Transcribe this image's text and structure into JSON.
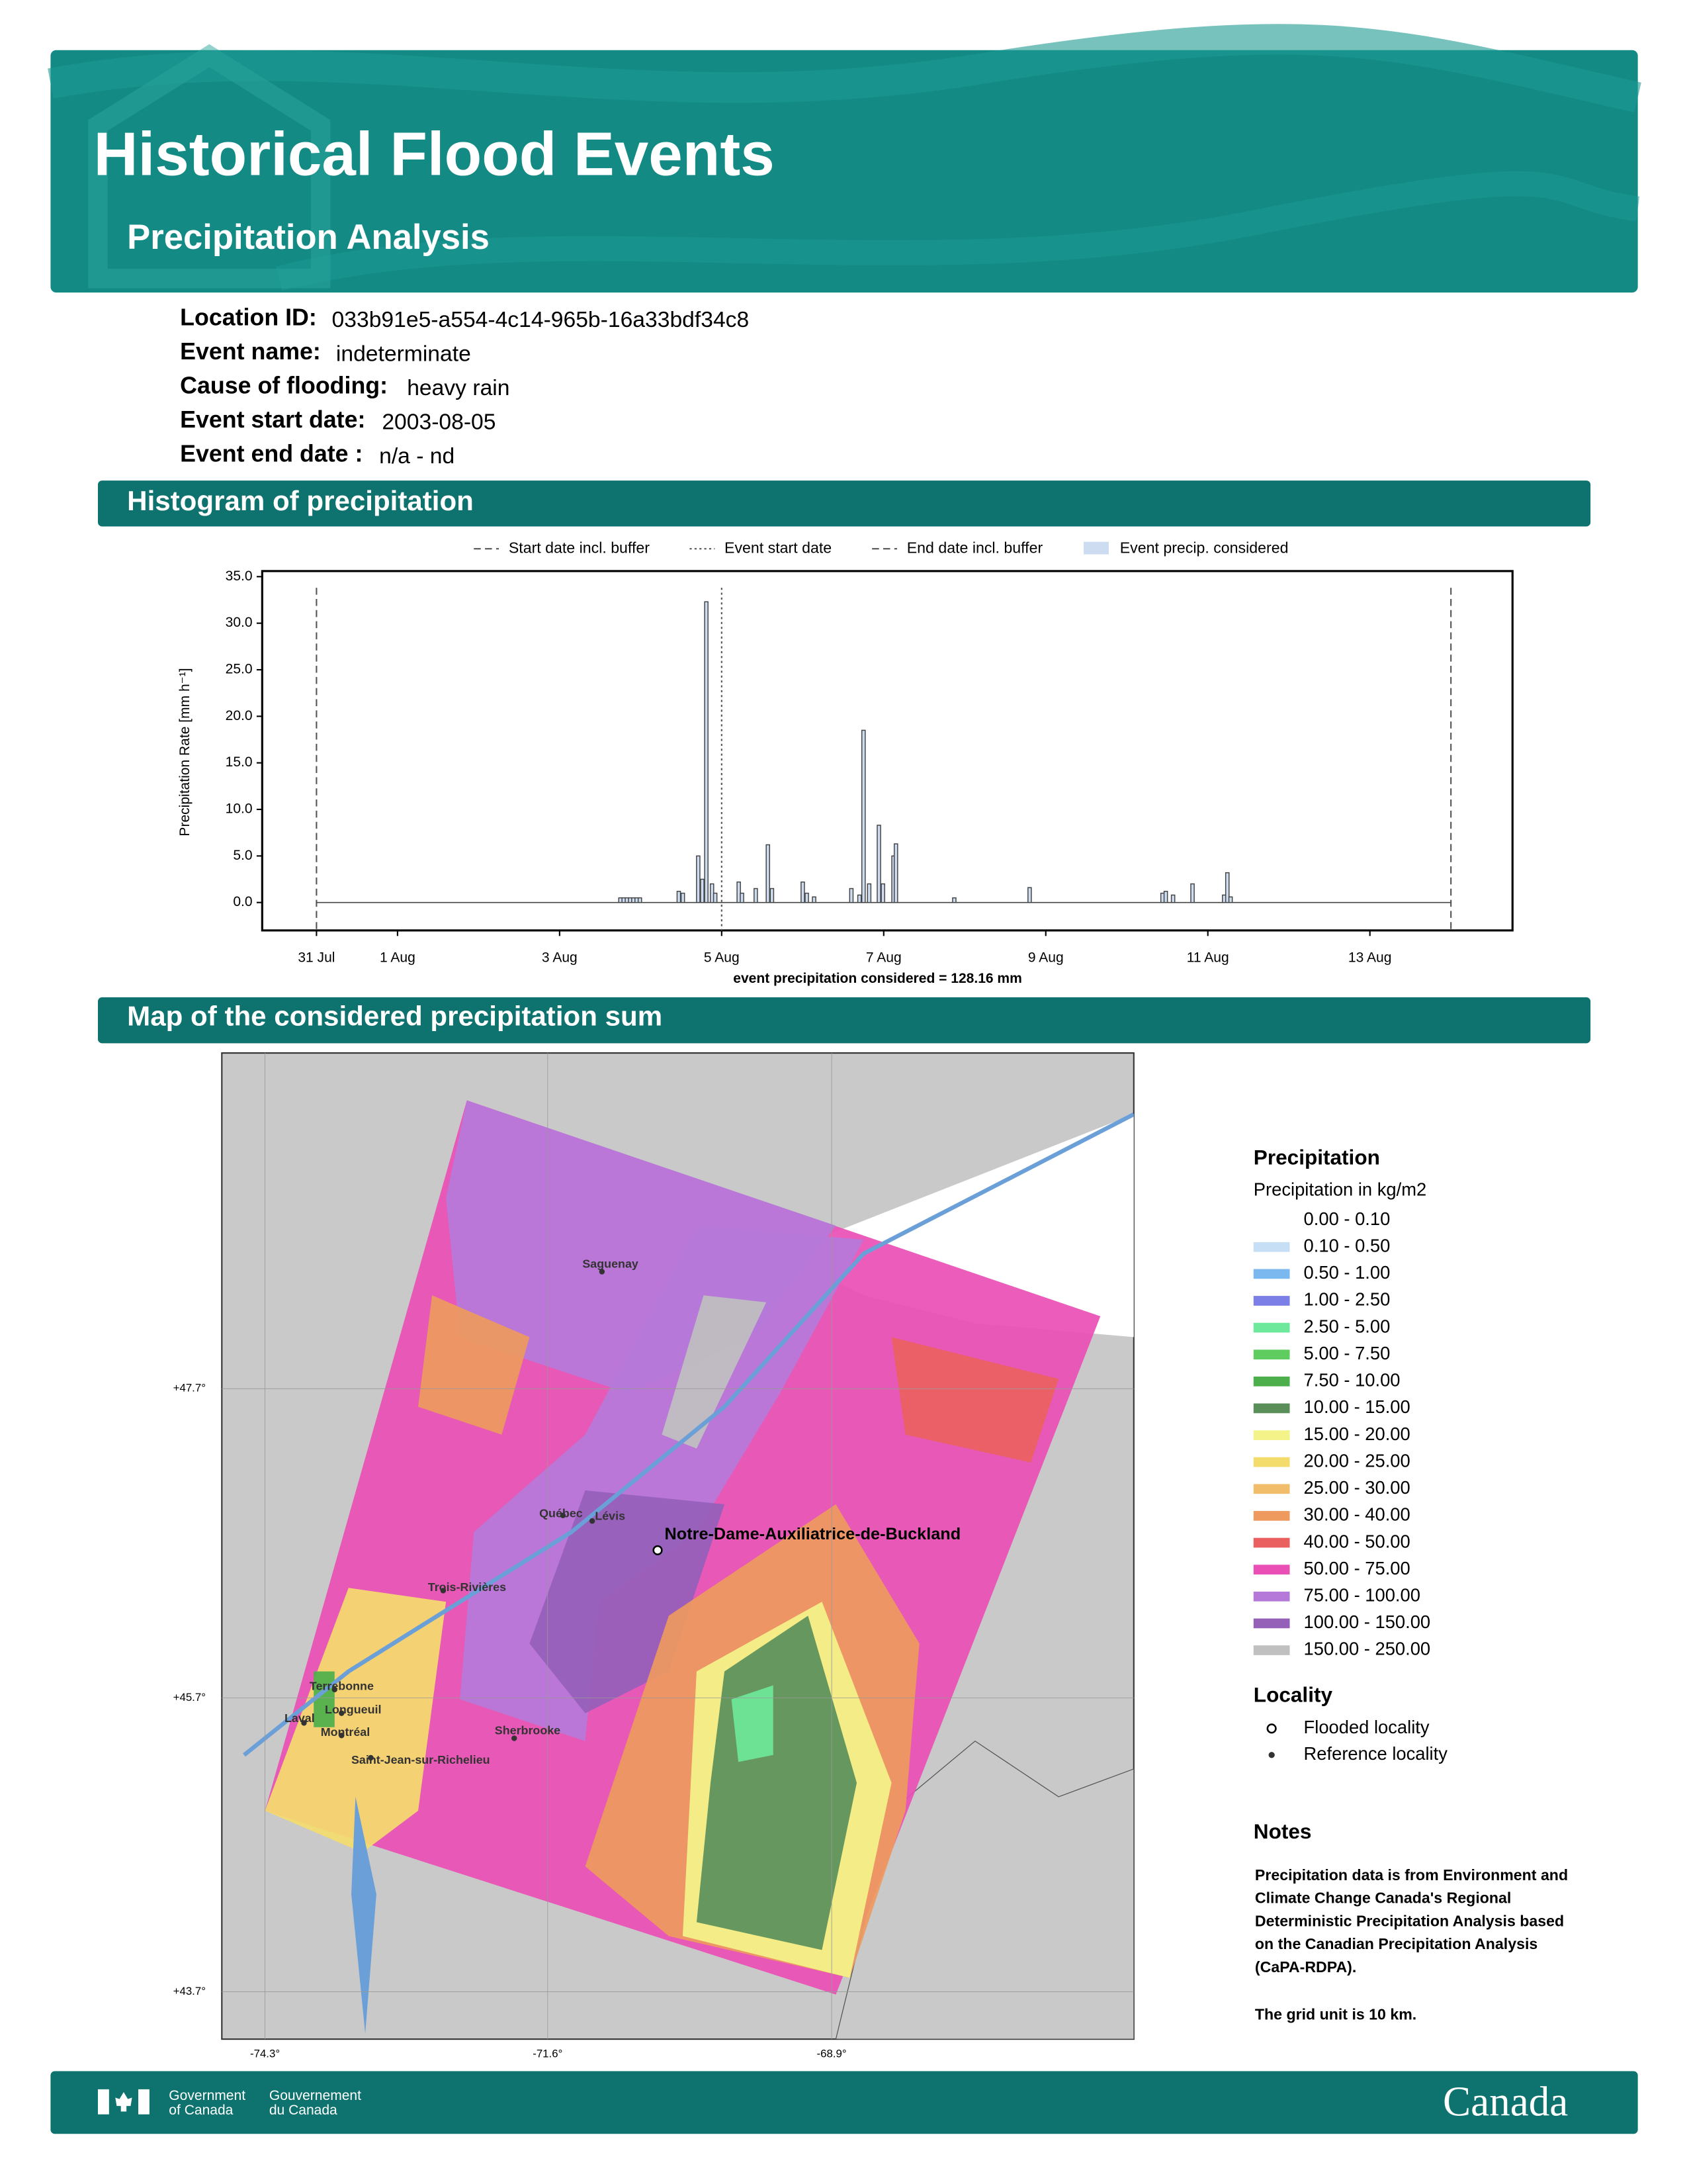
{
  "header": {
    "title": "Historical Flood Events",
    "subtitle": "Precipitation Analysis"
  },
  "info": [
    {
      "label": "Location ID:",
      "value": "033b91e5-a554-4c14-965b-16a33bdf34c8"
    },
    {
      "label": "Event name:",
      "value": "indeterminate"
    },
    {
      "label": "Cause of flooding:",
      "value": "heavy rain"
    },
    {
      "label": "Event start date:",
      "value": "2003-08-05"
    },
    {
      "label": "Event end date :",
      "value": "n/a - nd"
    }
  ],
  "sections": {
    "histogram": "Histogram of precipitation",
    "map": "Map of the considered precipitation sum"
  },
  "chart_data": {
    "type": "bar",
    "y_label": "Precipitation Rate [mm h⁻¹]",
    "annotation": "event precipitation considered = 128.16 mm",
    "series_name": "Event precip. considered",
    "color": "#cddcf0",
    "edge_color": "#444444",
    "x": [
      3.73,
      3.77,
      3.81,
      3.85,
      3.89,
      3.93,
      3.97,
      4.45,
      4.5,
      4.69,
      4.74,
      4.79,
      4.86,
      4.9,
      5.19,
      5.23,
      5.4,
      5.55,
      5.6,
      5.98,
      6.03,
      6.12,
      6.58,
      6.68,
      6.73,
      6.8,
      6.92,
      6.97,
      7.1,
      7.13,
      7.85,
      8.78,
      10.42,
      10.46,
      10.55,
      10.79,
      11.18,
      11.22,
      11.26
    ],
    "values": [
      0.5,
      0.5,
      0.5,
      0.5,
      0.5,
      0.5,
      0.5,
      1.2,
      1.0,
      5.0,
      2.5,
      32.3,
      2.0,
      1.0,
      2.2,
      1.0,
      1.5,
      6.2,
      1.5,
      2.2,
      1.0,
      0.6,
      1.5,
      0.8,
      18.5,
      2.0,
      8.3,
      2.0,
      5.0,
      6.3,
      0.5,
      1.6,
      1.0,
      1.2,
      0.8,
      2.0,
      0.8,
      3.2,
      0.6
    ],
    "lines": [
      {
        "name": "Start date incl. buffer",
        "x": 0,
        "style": "dashed"
      },
      {
        "name": "Event start date",
        "x": 5,
        "style": "dotted"
      },
      {
        "name": "End date incl. buffer",
        "x": 14,
        "style": "dashed"
      }
    ],
    "xlim": [
      -0.67,
      14.76
    ],
    "ylim": [
      -3,
      35.6
    ],
    "xticks": [
      {
        "value": 0,
        "label": "31 Jul"
      },
      {
        "value": 1,
        "label": "1 Aug"
      },
      {
        "value": 3,
        "label": "3 Aug"
      },
      {
        "value": 5,
        "label": "5 Aug"
      },
      {
        "value": 7,
        "label": "7 Aug"
      },
      {
        "value": 9,
        "label": "9 Aug"
      },
      {
        "value": 11,
        "label": "11 Aug"
      },
      {
        "value": 13,
        "label": "13 Aug"
      }
    ],
    "yticks": [
      {
        "value": 0,
        "label": "0.0"
      },
      {
        "value": 5,
        "label": "5.0"
      },
      {
        "value": 10,
        "label": "10.0"
      },
      {
        "value": 15,
        "label": "15.0"
      },
      {
        "value": 20,
        "label": "20.0"
      },
      {
        "value": 25,
        "label": "25.0"
      },
      {
        "value": 30,
        "label": "30.0"
      },
      {
        "value": 35,
        "label": "35.0"
      }
    ]
  },
  "map": {
    "lat_labels": [
      "+47.7°",
      "+45.7°",
      "+43.7°"
    ],
    "lon_labels": [
      "-74.3°",
      "-71.6°",
      "-68.9°"
    ],
    "cities": [
      "Saguenay",
      "Québec",
      "Lévis",
      "Trois-Rivières",
      "Terrebonne",
      "Longueuil",
      "Laval",
      "Montréal",
      "Saint-Jean-sur-Richelieu",
      "Sherbrooke"
    ],
    "flooded": "Notre-Dame-Auxiliatrice-de-Buckland",
    "legend": {
      "title": "Precipitation",
      "subtitle": "Precipitation in kg/m2",
      "classes": [
        {
          "label": "0.00 - 0.10",
          "color": "#ffffff"
        },
        {
          "label": "0.10 - 0.50",
          "color": "#c6dff5"
        },
        {
          "label": "0.50 - 1.00",
          "color": "#7ab8ef"
        },
        {
          "label": "1.00 - 2.50",
          "color": "#7b7fe6"
        },
        {
          "label": "2.50 - 5.00",
          "color": "#6ee89a"
        },
        {
          "label": "5.00 - 7.50",
          "color": "#5fcc5f"
        },
        {
          "label": "7.50 - 10.00",
          "color": "#4caf4c"
        },
        {
          "label": "10.00 - 15.00",
          "color": "#5a8f5a"
        },
        {
          "label": "15.00 - 20.00",
          "color": "#f3f38a"
        },
        {
          "label": "20.00 - 25.00",
          "color": "#f4dc6c"
        },
        {
          "label": "25.00 - 30.00",
          "color": "#f1bd6a"
        },
        {
          "label": "30.00 - 40.00",
          "color": "#ee9a5e"
        },
        {
          "label": "40.00 - 50.00",
          "color": "#ea5f5f"
        },
        {
          "label": "50.00 - 75.00",
          "color": "#ea4fb5"
        },
        {
          "label": "75.00 - 100.00",
          "color": "#b57ad9"
        },
        {
          "label": "100.00 - 150.00",
          "color": "#9560b8"
        },
        {
          "label": "150.00 - 250.00",
          "color": "#c0c0c0"
        }
      ],
      "locality_title": "Locality",
      "locality": [
        "Flooded locality",
        "Reference locality"
      ]
    },
    "notes": {
      "title": "Notes",
      "lines": [
        "Precipitation data is from Environment and",
        "Climate Change Canada's Regional",
        "Deterministic Precipitation Analysis based",
        "on the Canadian Precipitation Analysis",
        "(CaPA-RDPA)."
      ],
      "grid_note": "The grid unit is 10 km."
    }
  },
  "footer": {
    "gov_en": [
      "Government",
      "of Canada"
    ],
    "gov_fr": [
      "Gouvernement",
      "du Canada"
    ],
    "wordmark": "Canada"
  }
}
